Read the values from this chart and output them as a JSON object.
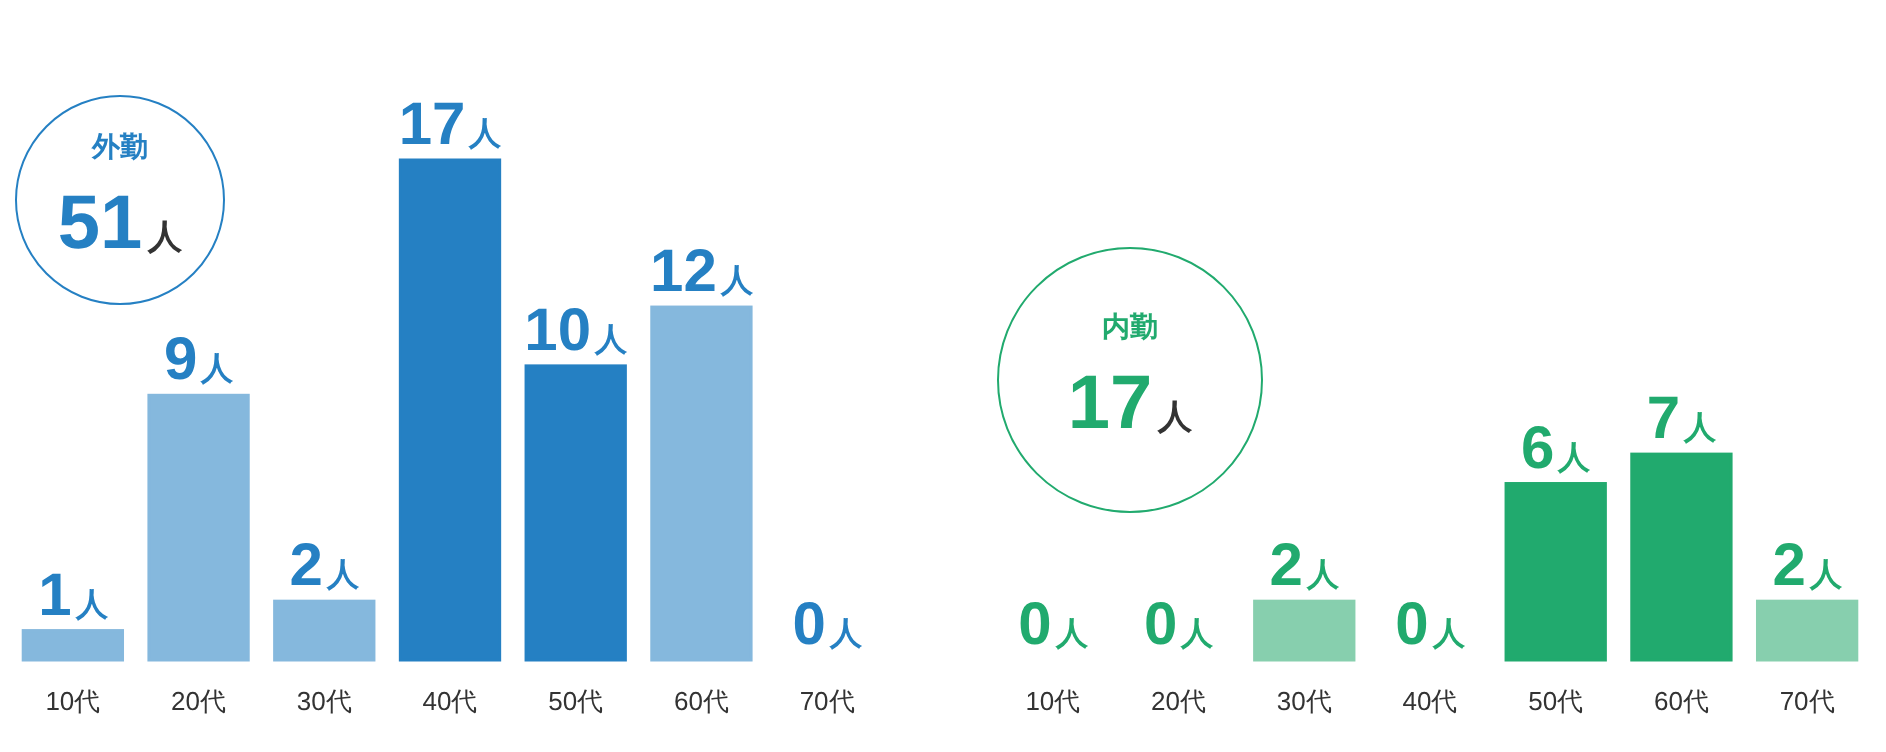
{
  "chart_data": [
    {
      "type": "bar",
      "title": "外勤",
      "subtitle": "51人",
      "categories": [
        "10代",
        "20代",
        "30代",
        "40代",
        "50代",
        "60代",
        "70代"
      ],
      "values": [
        1,
        9,
        2,
        17,
        10,
        12,
        0
      ],
      "colors": [
        "#85b8dd",
        "#85b8dd",
        "#85b8dd",
        "#2580c3",
        "#2580c3",
        "#85b8dd",
        "#85b8dd"
      ],
      "value_labels": [
        "1人",
        "9人",
        "2人",
        "17人",
        "10人",
        "12人",
        "0人"
      ]
    },
    {
      "type": "bar",
      "title": "内勤",
      "subtitle": "17人",
      "categories": [
        "10代",
        "20代",
        "30代",
        "40代",
        "50代",
        "60代",
        "70代"
      ],
      "values": [
        0,
        0,
        2,
        0,
        6,
        7,
        2
      ],
      "colors": [
        "#87cfae",
        "#87cfae",
        "#87cfae",
        "#87cfae",
        "#21aa6e",
        "#21aa6e",
        "#87cfae"
      ],
      "value_labels": [
        "0人",
        "0人",
        "2人",
        "0人",
        "6人",
        "7人",
        "2人"
      ]
    }
  ]
}
